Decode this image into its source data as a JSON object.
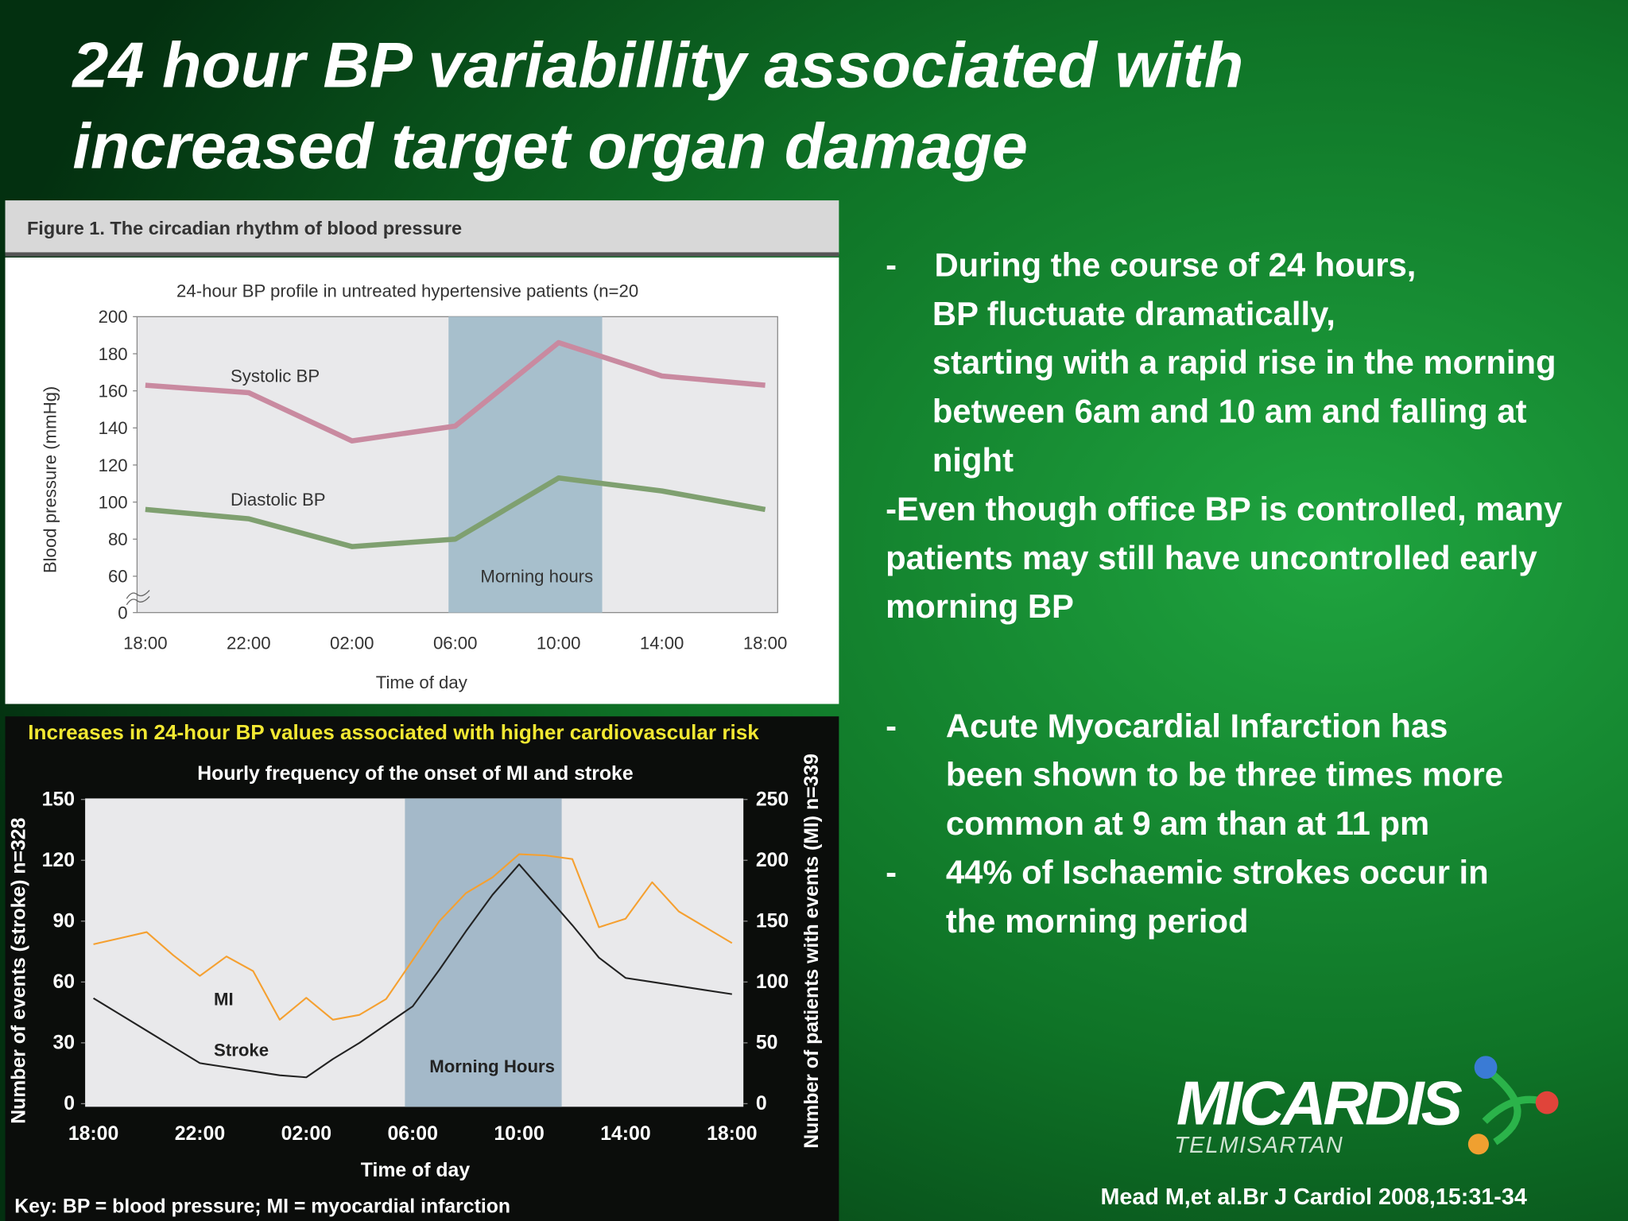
{
  "title_lines": [
    "24 hour BP variabillity associated with",
    "increased target organ damage"
  ],
  "bullet_groups": [
    [
      {
        "marker": "-",
        "lines": [
          "During the course of 24 hours,",
          "BP fluctuate dramatically,",
          "starting with a rapid rise in the morning",
          "between  6am and 10 am and falling at",
          "night"
        ]
      },
      {
        "lines": [
          "-Even though office BP is controlled, many",
          "patients may still have uncontrolled early",
          "morning BP"
        ]
      }
    ],
    [
      {
        "marker": "-",
        "lines": [
          "Acute Myocardial Infarction has",
          "been shown to be three times more",
          "common at 9 am than at 11 pm"
        ]
      },
      {
        "marker": "-",
        "lines": [
          "44% of Ischaemic strokes occur in",
          "the morning period"
        ]
      }
    ]
  ],
  "logo": {
    "brand": "MICARDIS",
    "generic": "TELMISARTAN"
  },
  "citation": "Mead M,et al.Br J Cardiol 2008,15:31-34",
  "chart_data": [
    {
      "type": "line",
      "figure_label": "Figure 1. The circadian rhythm of blood pressure",
      "title": "24-hour BP profile in untreated hypertensive patients (n=20",
      "xlabel": "Time of day",
      "ylabel": "Blood pressure (mmHg)",
      "categories": [
        "18:00",
        "22:00",
        "02:00",
        "06:00",
        "10:00",
        "14:00",
        "18:00"
      ],
      "series": [
        {
          "name": "Systolic BP",
          "color": "#c98aa0",
          "values": [
            163,
            159,
            133,
            141,
            186,
            168,
            163
          ]
        },
        {
          "name": "Diastolic BP",
          "color": "#7fa070",
          "values": [
            96,
            91,
            76,
            80,
            113,
            106,
            96
          ]
        }
      ],
      "ylim": [
        0,
        200
      ],
      "yticks": [
        0,
        60,
        80,
        100,
        120,
        140,
        160,
        180,
        200
      ],
      "axis_break": true,
      "annotations": [
        "Morning hours"
      ]
    },
    {
      "type": "line",
      "header": "Increases in 24-hour BP  values associated with higher cardiovascular risk",
      "title": "Hourly frequency of the onset of MI and stroke",
      "xlabel": "Time of day",
      "ylabel": "Number of events (stroke) n=328",
      "y2label": "Number of patients with events (MI) n=339",
      "categories": [
        "18:00",
        null,
        null,
        null,
        "22:00",
        null,
        null,
        null,
        "02:00",
        null,
        null,
        null,
        "06:00",
        null,
        null,
        null,
        "10:00",
        null,
        null,
        null,
        "14:00",
        null,
        null,
        null,
        "18:00"
      ],
      "series": [
        {
          "name": "MI",
          "color": "#f5a030",
          "axis": "y2",
          "values": [
            131,
            136,
            141,
            122,
            105,
            121,
            109,
            69,
            87,
            69,
            73,
            86,
            118,
            150,
            173,
            186,
            205,
            204,
            201,
            145,
            152,
            182,
            158,
            145,
            132
          ]
        },
        {
          "name": "Stroke",
          "color": "#222222",
          "values": [
            52,
            44,
            36,
            28,
            20,
            18,
            16,
            14,
            13,
            22,
            30,
            39,
            48,
            66,
            85,
            103,
            118,
            103,
            88,
            72,
            62,
            60,
            58,
            56,
            54
          ]
        }
      ],
      "ylim": [
        0,
        150
      ],
      "yticks": [
        0,
        30,
        60,
        90,
        120,
        150
      ],
      "y2lim": [
        0,
        250
      ],
      "y2ticks": [
        0,
        50,
        100,
        150,
        200,
        250
      ],
      "annotations": [
        "Morning Hours"
      ],
      "key": "Key: BP = blood pressure;  MI = myocardial infarction"
    }
  ]
}
